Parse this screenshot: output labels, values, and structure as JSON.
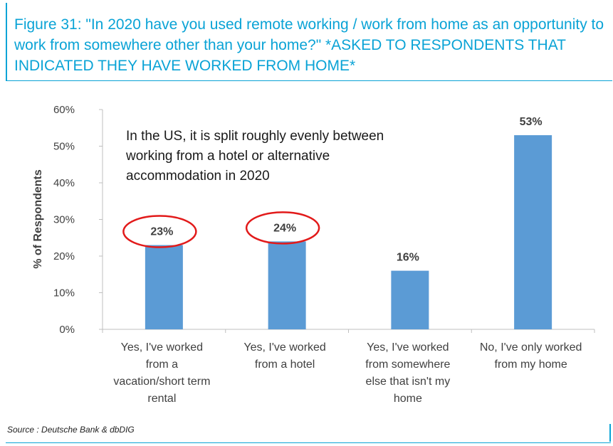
{
  "figure": {
    "title": "Figure 31: \"In 2020 have you used remote working / work from home as an opportunity to work from somewhere other than your home?\" *ASKED TO RESPONDENTS THAT INDICATED THEY HAVE WORKED FROM HOME*",
    "source": "Source : Deutsche Bank & dbDIG"
  },
  "colors": {
    "accent": "#0aa3d6",
    "bar": "#5b9bd5",
    "highlight": "#e21a1a"
  },
  "chart_data": {
    "type": "bar",
    "title": "",
    "ylabel": "% of Respondents",
    "xlabel": "",
    "ylim": [
      0,
      60
    ],
    "yticks": [
      0,
      10,
      20,
      30,
      40,
      50,
      60
    ],
    "ytick_labels": [
      "0%",
      "10%",
      "20%",
      "30%",
      "40%",
      "50%",
      "60%"
    ],
    "grid": false,
    "categories": [
      "Yes, I've worked from a vacation/short term rental",
      "Yes, I've worked from a hotel",
      "Yes, I've worked from somewhere else that isn't my home",
      "No, I've only worked from my home"
    ],
    "category_lines": [
      [
        "Yes, I've worked",
        "from a",
        "vacation/short term",
        "rental"
      ],
      [
        "Yes, I've worked",
        "from a hotel"
      ],
      [
        "Yes, I've worked",
        "from somewhere",
        "else that isn't my",
        "home"
      ],
      [
        "No, I've only worked",
        "from my home"
      ]
    ],
    "values": [
      23,
      24,
      16,
      53
    ],
    "data_labels": [
      "23%",
      "24%",
      "16%",
      "53%"
    ],
    "highlighted": [
      0,
      1
    ],
    "annotation": {
      "text": "In the US, it is split roughly evenly between working from a hotel or alternative accommodation in 2020",
      "lines": [
        "In the US, it is split roughly evenly between",
        "working from a hotel or alternative",
        "accommodation in 2020"
      ]
    }
  }
}
